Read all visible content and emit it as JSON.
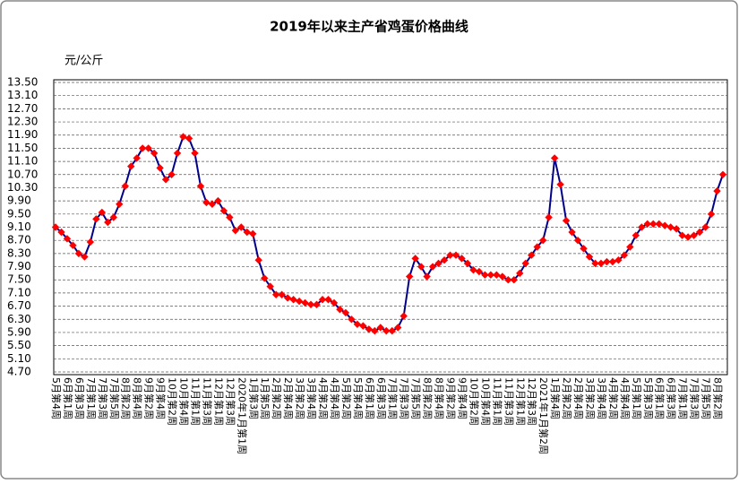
{
  "chart_data": {
    "type": "line",
    "title": "2019年以来主产省鸡蛋价格曲线",
    "y_label": "元/公斤",
    "categories": [
      "5月第4周",
      null,
      "6月第1周",
      null,
      "6月第3周",
      null,
      "7月第1周",
      null,
      "7月第3周",
      null,
      "7月第5周",
      null,
      "8月第2周",
      null,
      "8月第4周",
      null,
      "9月第2周",
      null,
      "9月第4周",
      null,
      "10月第2周",
      null,
      "10月第4周",
      null,
      "11月第1周",
      null,
      "11月第3周",
      null,
      "12月第1周",
      null,
      "12月第3周",
      null,
      "2020年1月第1周",
      null,
      "1月第3周",
      null,
      "1月第5周",
      null,
      "2月第2周",
      null,
      "2月第4周",
      null,
      "3月第2周",
      null,
      "3月第4周",
      null,
      "4月第2周",
      null,
      "4月第4周",
      null,
      "5月第2周",
      null,
      "5月第4周",
      null,
      "6月第1周",
      null,
      "6月第3周",
      null,
      "7月第1周",
      null,
      "7月第3周",
      null,
      "7月第5周",
      null,
      "8月第2周",
      null,
      "8月第4周",
      null,
      "9月第2周",
      null,
      "9月第4周",
      null,
      "10月第2周",
      null,
      "10月第4周",
      null,
      "11月第1周",
      null,
      "11月第3周",
      null,
      "12月第1周",
      null,
      "12月第3周",
      null,
      "2021年1月第2周",
      null,
      "1月第4周",
      null,
      "2月第2周",
      null,
      "2月第4周",
      null,
      "3月第2周",
      null,
      "3月第4周",
      null,
      "4月第2周",
      null,
      "4月第4周",
      null,
      "5月第1周",
      null,
      "5月第3周",
      null,
      "6月第1周",
      null,
      "6月第3周",
      null,
      "7月第1周",
      null,
      "7月第3周",
      null,
      "7月第5周",
      null,
      "8月第2周",
      null
    ],
    "series": [
      {
        "color": "#00008b",
        "marker_color": "#ff0000",
        "values": [
          9.1,
          8.95,
          8.75,
          8.55,
          8.3,
          8.2,
          8.65,
          9.35,
          9.55,
          9.25,
          9.4,
          9.8,
          10.35,
          10.95,
          11.2,
          11.5,
          11.5,
          11.35,
          10.9,
          10.55,
          10.7,
          11.35,
          11.85,
          11.8,
          11.35,
          10.35,
          9.85,
          9.8,
          9.9,
          9.6,
          9.4,
          9.0,
          9.1,
          8.95,
          8.9,
          8.1,
          7.55,
          7.3,
          7.05,
          7.05,
          6.95,
          6.9,
          6.85,
          6.8,
          6.75,
          6.75,
          6.9,
          6.9,
          6.8,
          6.6,
          6.5,
          6.3,
          6.15,
          6.1,
          6.0,
          5.95,
          6.05,
          5.95,
          5.95,
          6.05,
          6.4,
          7.6,
          8.15,
          7.9,
          7.6,
          7.9,
          8.0,
          8.1,
          8.25,
          8.25,
          8.15,
          8.0,
          7.8,
          7.75,
          7.65,
          7.65,
          7.65,
          7.6,
          7.5,
          7.5,
          7.7,
          8.0,
          8.25,
          8.5,
          8.7,
          9.4,
          11.2,
          10.4,
          9.3,
          8.95,
          8.7,
          8.45,
          8.2,
          8.0,
          8.0,
          8.05,
          8.05,
          8.1,
          8.25,
          8.5,
          8.85,
          9.1,
          9.2,
          9.2,
          9.2,
          9.15,
          9.1,
          9.05,
          8.85,
          8.8,
          8.85,
          8.95,
          9.1,
          9.5,
          10.2,
          10.7
        ]
      }
    ],
    "ylim": [
      4.7,
      13.5
    ],
    "yticks": [
      {
        "value": 4.7,
        "label": "4.70"
      },
      {
        "value": 5.1,
        "label": "5.10"
      },
      {
        "value": 5.5,
        "label": "5.50"
      },
      {
        "value": 5.9,
        "label": "5.90"
      },
      {
        "value": 6.3,
        "label": "6.30"
      },
      {
        "value": 6.7,
        "label": "6.70"
      },
      {
        "value": 7.1,
        "label": "7.10"
      },
      {
        "value": 7.5,
        "label": "7.50"
      },
      {
        "value": 7.9,
        "label": "7.90"
      },
      {
        "value": 8.3,
        "label": "8.30"
      },
      {
        "value": 8.7,
        "label": "8.70"
      },
      {
        "value": 9.1,
        "label": "9.10"
      },
      {
        "value": 9.5,
        "label": "9.50"
      },
      {
        "value": 9.9,
        "label": "9.90"
      },
      {
        "value": 10.3,
        "label": "10.30"
      },
      {
        "value": 10.7,
        "label": "10.70"
      },
      {
        "value": 11.1,
        "label": "11.10"
      },
      {
        "value": 11.5,
        "label": "11.50"
      },
      {
        "value": 11.9,
        "label": "11.90"
      },
      {
        "value": 12.3,
        "label": "12.30"
      },
      {
        "value": 12.7,
        "label": "12.70"
      },
      {
        "value": 13.1,
        "label": "13.10"
      },
      {
        "value": 13.5,
        "label": "13.50"
      }
    ],
    "grid": true
  }
}
